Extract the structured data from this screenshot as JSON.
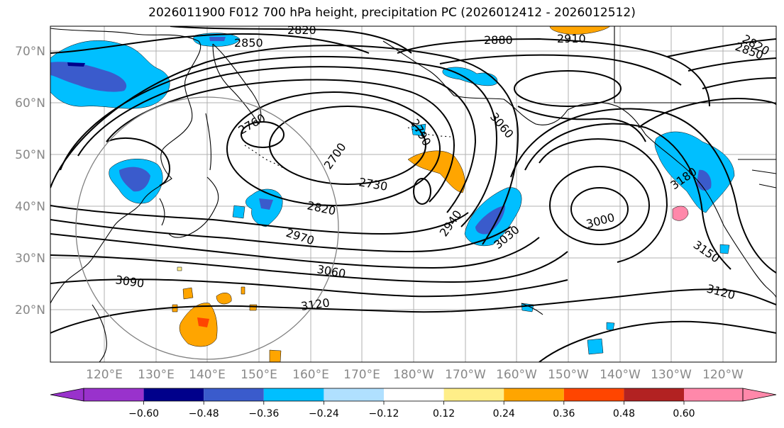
{
  "title": "2026011900 F012 700 hPa height, precipitation PC (2026012412 - 2026012512)",
  "lat_labels": [
    "70°N",
    "60°N",
    "50°N",
    "40°N",
    "30°N",
    "20°N"
  ],
  "lon_labels": [
    "120°E",
    "130°E",
    "140°E",
    "150°E",
    "160°E",
    "170°E",
    "180°W",
    "170°W",
    "160°W",
    "150°W",
    "140°W",
    "130°W",
    "120°W"
  ],
  "contour_labels": [
    "2820",
    "2850",
    "2880",
    "2910",
    "2820",
    "2850",
    "2760",
    "2790",
    "2700",
    "2730",
    "2820",
    "2970",
    "3060",
    "3060",
    "2940",
    "3030",
    "3000",
    "3180",
    "3150",
    "3090",
    "3120",
    "3120"
  ],
  "colorbar": {
    "ticks": [
      "−0.60",
      "−0.48",
      "−0.36",
      "−0.24",
      "−0.12",
      "0.12",
      "0.24",
      "0.36",
      "0.48",
      "0.60"
    ],
    "colors": [
      "#9932cc",
      "#00008b",
      "#3a5bcc",
      "#00bfff",
      "#b0e0ff",
      "#ffffff",
      "#ffee88",
      "#ffa500",
      "#ff4500",
      "#b22222",
      "#ff88aa",
      "#ff88aa"
    ],
    "under_color": "#9932cc",
    "over_color": "#ff88aa"
  },
  "colors": {
    "land_line": "#000000",
    "contour_line": "#000000",
    "grid": "#b0b0b0",
    "circle": "#808080",
    "label_gray": "#888888"
  }
}
